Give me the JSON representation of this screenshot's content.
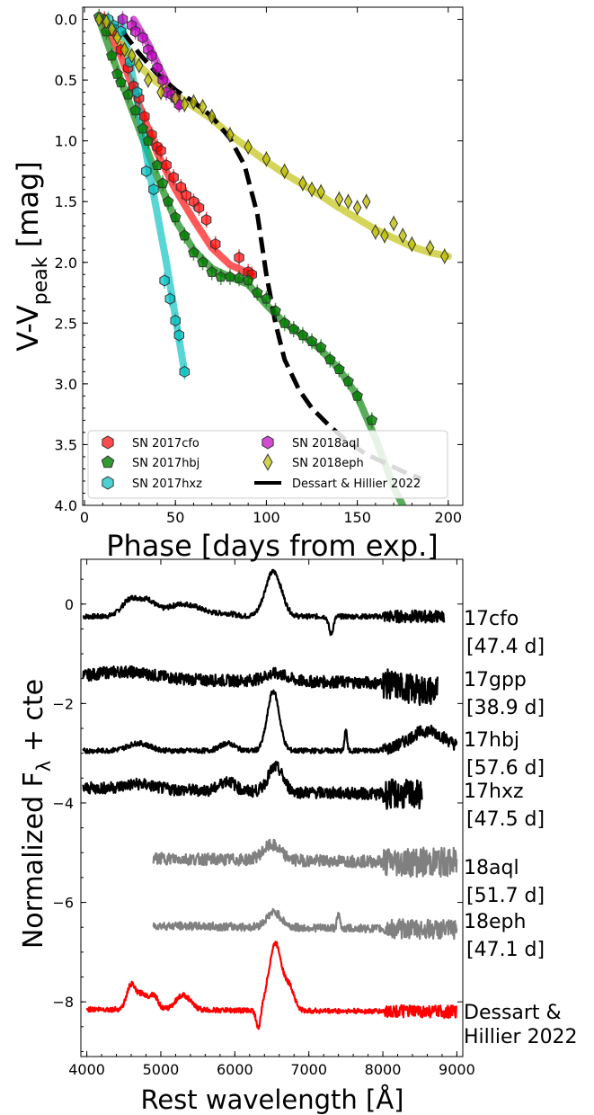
{
  "chart_data": [
    {
      "type": "scatter",
      "xlabel": "Phase [days from exp.]",
      "ylabel_main": "V-V",
      "ylabel_sub": "peak",
      "ylabel_unit": " [mag]",
      "xlim": [
        -1,
        208
      ],
      "ylim": [
        4.0,
        -0.1
      ],
      "y_inverted": true,
      "xticks": [
        0,
        50,
        100,
        150,
        200
      ],
      "yticks": [
        0.0,
        0.5,
        1.0,
        1.5,
        2.0,
        2.5,
        3.0,
        3.5,
        4.0
      ],
      "legend_position": "lower-left",
      "series": [
        {
          "name": "SN 2017cfo",
          "marker": "hexagon",
          "color": "#ff0000",
          "points": [
            [
              11,
              0.0
            ],
            [
              16,
              0.1
            ],
            [
              20,
              0.25
            ],
            [
              24,
              0.4
            ],
            [
              27,
              0.55
            ],
            [
              30,
              0.65
            ],
            [
              33,
              0.8
            ],
            [
              37,
              0.95
            ],
            [
              40,
              1.05
            ],
            [
              42,
              1.08
            ],
            [
              45,
              1.2
            ],
            [
              49,
              1.3
            ],
            [
              53,
              1.38
            ],
            [
              56,
              1.45
            ],
            [
              60,
              1.5
            ],
            [
              63,
              1.55
            ],
            [
              67,
              1.65
            ],
            [
              72,
              1.85
            ],
            [
              85,
              1.96
            ],
            [
              90,
              2.08
            ],
            [
              92,
              2.1
            ]
          ],
          "fit": [
            [
              10,
              0.0
            ],
            [
              20,
              0.3
            ],
            [
              30,
              0.7
            ],
            [
              40,
              1.1
            ],
            [
              50,
              1.4
            ],
            [
              60,
              1.65
            ],
            [
              70,
              1.88
            ],
            [
              80,
              2.02
            ],
            [
              92,
              2.1
            ]
          ]
        },
        {
          "name": "SN 2017hbj",
          "marker": "pentagon",
          "color": "#008000",
          "points": [
            [
              8,
              -0.02
            ],
            [
              12,
              0.1
            ],
            [
              15,
              0.3
            ],
            [
              18,
              0.45
            ],
            [
              20,
              0.52
            ],
            [
              24,
              0.62
            ],
            [
              28,
              0.75
            ],
            [
              32,
              0.9
            ],
            [
              35,
              1.0
            ],
            [
              40,
              1.2
            ],
            [
              43,
              1.35
            ],
            [
              46,
              1.5
            ],
            [
              50,
              1.63
            ],
            [
              55,
              1.78
            ],
            [
              60,
              1.92
            ],
            [
              65,
              2.0
            ],
            [
              70,
              2.08
            ],
            [
              75,
              2.12
            ],
            [
              80,
              2.12
            ],
            [
              85,
              2.13
            ],
            [
              90,
              2.15
            ],
            [
              95,
              2.25
            ],
            [
              100,
              2.3
            ],
            [
              105,
              2.4
            ],
            [
              110,
              2.5
            ],
            [
              115,
              2.55
            ],
            [
              120,
              2.6
            ],
            [
              125,
              2.65
            ],
            [
              130,
              2.7
            ],
            [
              135,
              2.8
            ],
            [
              140,
              2.88
            ],
            [
              145,
              2.98
            ],
            [
              150,
              3.1
            ],
            [
              158,
              3.3
            ]
          ],
          "fit": [
            [
              8,
              0.0
            ],
            [
              20,
              0.5
            ],
            [
              30,
              0.9
            ],
            [
              40,
              1.3
            ],
            [
              50,
              1.65
            ],
            [
              60,
              1.9
            ],
            [
              70,
              2.05
            ],
            [
              80,
              2.12
            ],
            [
              90,
              2.18
            ],
            [
              100,
              2.35
            ],
            [
              110,
              2.5
            ],
            [
              120,
              2.6
            ],
            [
              130,
              2.72
            ],
            [
              140,
              2.88
            ],
            [
              150,
              3.1
            ],
            [
              160,
              3.45
            ],
            [
              170,
              3.85
            ],
            [
              175,
              4.0
            ]
          ]
        },
        {
          "name": "SN 2017hxz",
          "marker": "hexagon",
          "color": "#00bfbf",
          "points": [
            [
              13,
              0.0
            ],
            [
              16,
              0.05
            ],
            [
              20,
              0.1
            ],
            [
              25,
              0.35
            ],
            [
              29,
              0.6
            ],
            [
              34,
              1.25
            ],
            [
              38,
              1.4
            ],
            [
              44,
              2.15
            ],
            [
              47,
              2.3
            ],
            [
              50,
              2.48
            ],
            [
              52,
              2.6
            ],
            [
              55,
              2.9
            ]
          ],
          "fit": [
            [
              20,
              0.0
            ],
            [
              25,
              0.35
            ],
            [
              30,
              0.75
            ],
            [
              35,
              1.2
            ],
            [
              40,
              1.6
            ],
            [
              45,
              2.0
            ],
            [
              50,
              2.45
            ],
            [
              55,
              2.9
            ]
          ]
        },
        {
          "name": "SN 2018aql",
          "marker": "hexagon",
          "color": "#bf00bf",
          "points": [
            [
              21,
              0.0
            ],
            [
              26,
              0.05
            ],
            [
              28,
              0.1
            ],
            [
              32,
              0.15
            ],
            [
              35,
              0.25
            ],
            [
              37,
              0.3
            ],
            [
              40,
              0.4
            ],
            [
              43,
              0.5
            ],
            [
              45,
              0.6
            ],
            [
              48,
              0.62
            ],
            [
              50,
              0.65
            ],
            [
              52,
              0.7
            ]
          ],
          "fit": [
            [
              27,
              0.0
            ],
            [
              35,
              0.2
            ],
            [
              42,
              0.42
            ],
            [
              48,
              0.6
            ],
            [
              52,
              0.72
            ]
          ]
        },
        {
          "name": "SN 2018eph",
          "marker": "thin_diamond",
          "color": "#bfbf00",
          "points": [
            [
              8,
              0.0
            ],
            [
              12,
              0.02
            ],
            [
              15,
              0.08
            ],
            [
              18,
              0.15
            ],
            [
              22,
              0.25
            ],
            [
              26,
              0.3
            ],
            [
              30,
              0.38
            ],
            [
              35,
              0.5
            ],
            [
              42,
              0.6
            ],
            [
              50,
              0.65
            ],
            [
              55,
              0.7
            ],
            [
              60,
              0.68
            ],
            [
              65,
              0.72
            ],
            [
              70,
              0.8
            ],
            [
              80,
              0.95
            ],
            [
              90,
              1.05
            ],
            [
              100,
              1.15
            ],
            [
              110,
              1.25
            ],
            [
              120,
              1.35
            ],
            [
              125,
              1.4
            ],
            [
              130,
              1.42
            ],
            [
              140,
              1.48
            ],
            [
              145,
              1.5
            ],
            [
              150,
              1.55
            ],
            [
              155,
              1.5
            ],
            [
              160,
              1.75
            ],
            [
              165,
              1.78
            ],
            [
              170,
              1.68
            ],
            [
              175,
              1.78
            ],
            [
              180,
              1.85
            ],
            [
              190,
              1.88
            ],
            [
              198,
              1.95
            ]
          ],
          "fit": [
            [
              10,
              0.0
            ],
            [
              20,
              0.2
            ],
            [
              30,
              0.38
            ],
            [
              40,
              0.52
            ],
            [
              50,
              0.62
            ],
            [
              60,
              0.72
            ],
            [
              70,
              0.82
            ],
            [
              80,
              0.95
            ],
            [
              90,
              1.06
            ],
            [
              100,
              1.17
            ],
            [
              110,
              1.27
            ],
            [
              120,
              1.36
            ],
            [
              130,
              1.45
            ],
            [
              140,
              1.55
            ],
            [
              150,
              1.64
            ],
            [
              160,
              1.73
            ],
            [
              170,
              1.8
            ],
            [
              180,
              1.87
            ],
            [
              190,
              1.92
            ],
            [
              200,
              1.95
            ]
          ]
        },
        {
          "name": "Dessart & Hillier 2022",
          "marker": "line",
          "color": "#000000",
          "model": [
            [
              10,
              0.0
            ],
            [
              20,
              0.08
            ],
            [
              30,
              0.28
            ],
            [
              40,
              0.45
            ],
            [
              50,
              0.58
            ],
            [
              60,
              0.68
            ],
            [
              70,
              0.8
            ],
            [
              80,
              0.98
            ],
            [
              88,
              1.2
            ],
            [
              95,
              1.6
            ],
            [
              100,
              2.1
            ],
            [
              105,
              2.5
            ],
            [
              110,
              2.8
            ],
            [
              118,
              3.05
            ],
            [
              125,
              3.2
            ],
            [
              135,
              3.35
            ],
            [
              145,
              3.48
            ],
            [
              155,
              3.58
            ],
            [
              165,
              3.65
            ],
            [
              175,
              3.72
            ],
            [
              185,
              3.78
            ]
          ]
        }
      ]
    },
    {
      "type": "line",
      "xlabel": "Rest wavelength [Å]",
      "ylabel_main": "Normalized F",
      "ylabel_sub": "λ",
      "ylabel_unit": " + cte",
      "xlim": [
        3920,
        9080
      ],
      "ylim": [
        -9.1,
        0.9
      ],
      "xticks": [
        4000,
        5000,
        6000,
        7000,
        8000,
        9000
      ],
      "yticks": [
        0,
        -2,
        -4,
        -6,
        -8
      ],
      "series": [
        {
          "name": "17cfo",
          "phase": "[47.4 d]",
          "color": "#000000",
          "width": 2.2,
          "offset": -0.25,
          "range": [
            3950,
            8830
          ],
          "features": [
            [
              4300,
              0.0,
              200,
              0.25
            ],
            [
              4600,
              0.35,
              120,
              0.25
            ],
            [
              4830,
              0.25,
              100,
              0.2
            ],
            [
              5300,
              0.25,
              250,
              0.2
            ],
            [
              5900,
              0.05,
              120,
              0.15
            ],
            [
              6520,
              0.9,
              110,
              0.5
            ],
            [
              7300,
              -0.35,
              30,
              0.3
            ]
          ],
          "noise": 0.05
        },
        {
          "name": "17gpp",
          "phase": "[38.9 d]",
          "color": "#000000",
          "width": 2.2,
          "offset": -1.5,
          "range": [
            3950,
            8740
          ],
          "features": [
            [
              4500,
              0.15,
              400,
              0.15
            ],
            [
              6550,
              0.15,
              150,
              0.2
            ],
            [
              8600,
              -0.15,
              300,
              0.1
            ]
          ],
          "noise": 0.12,
          "slope": -0.1
        },
        {
          "name": "17hbj",
          "phase": "[57.6 d]",
          "color": "#000000",
          "width": 2.2,
          "offset": -2.95,
          "range": [
            3950,
            9000
          ],
          "features": [
            [
              4700,
              0.15,
              150,
              0.2
            ],
            [
              5900,
              0.15,
              100,
              0.2
            ],
            [
              6520,
              1.2,
              80,
              0.45
            ],
            [
              7500,
              0.45,
              15,
              0.5
            ],
            [
              8600,
              0.4,
              250,
              0.3
            ]
          ],
          "noise": 0.05
        },
        {
          "name": "17hxz",
          "phase": "[47.5 d]",
          "color": "#000000",
          "width": 2.2,
          "offset": -3.7,
          "range": [
            3950,
            8530
          ],
          "features": [
            [
              4700,
              0.1,
              200,
              0.2
            ],
            [
              5900,
              0.2,
              100,
              0.2
            ],
            [
              6550,
              0.5,
              100,
              0.25
            ]
          ],
          "noise": 0.12,
          "slope": -0.15
        },
        {
          "name": "18aql",
          "phase": "[51.7 d]",
          "color": "#808080",
          "width": 2.2,
          "offset": -5.1,
          "range": [
            4900,
            9000
          ],
          "features": [
            [
              6500,
              0.3,
              120,
              0.2
            ]
          ],
          "noise": 0.12,
          "slope": -0.1
        },
        {
          "name": "18eph",
          "phase": "[47.1 d]",
          "color": "#808080",
          "width": 2.2,
          "offset": -6.45,
          "range": [
            4900,
            9000
          ],
          "features": [
            [
              6530,
              0.3,
              100,
              0.2
            ],
            [
              7400,
              0.25,
              20,
              0.3
            ]
          ],
          "noise": 0.08,
          "slope": -0.1
        },
        {
          "name": "Dessart & Hillier 2022",
          "phase": "",
          "color": "#ff0000",
          "width": 2.2,
          "offset": -8.15,
          "range": [
            4000,
            9000
          ],
          "features": [
            [
              4600,
              0.5,
              60,
              0.3
            ],
            [
              4750,
              0.3,
              60,
              0.3
            ],
            [
              4900,
              0.3,
              60,
              0.3
            ],
            [
              5300,
              0.3,
              100,
              0.3
            ],
            [
              6320,
              -0.4,
              30,
              0.4
            ],
            [
              6550,
              1.35,
              90,
              0.5
            ],
            [
              6750,
              0.4,
              60,
              0.2
            ]
          ],
          "noise": 0.05,
          "slope": -0.05
        }
      ]
    }
  ]
}
